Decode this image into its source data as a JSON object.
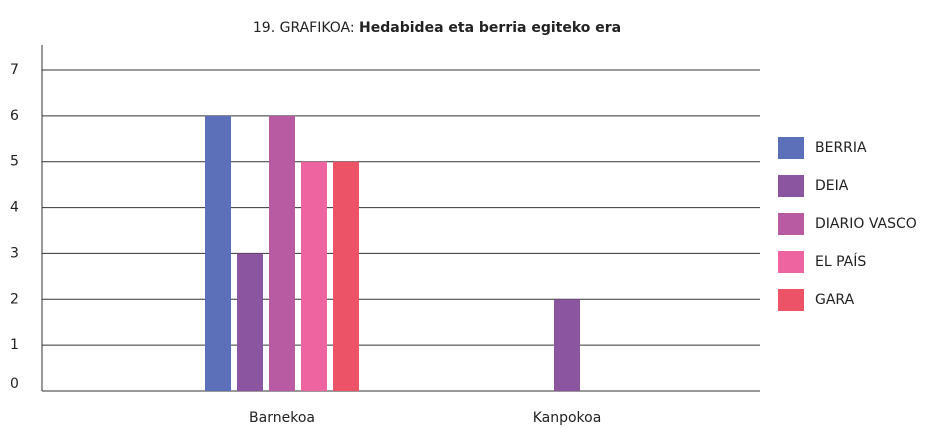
{
  "chart_data": {
    "type": "bar",
    "title": [
      "19. GRAFIKOA:",
      "Hedabidea eta berria egiteko era"
    ],
    "categories": [
      "Barnekoa",
      "Kanpokoa"
    ],
    "series": [
      {
        "name": "BERRIA",
        "color": "#5b70b8",
        "values": [
          6,
          null
        ]
      },
      {
        "name": "DEIA",
        "color": "#8b559f",
        "values": [
          3,
          2
        ]
      },
      {
        "name": "DIARIO VASCO",
        "color": "#b85ba3",
        "values": [
          6,
          null
        ]
      },
      {
        "name": "EL PAÍS",
        "color": "#ee64a0",
        "values": [
          5,
          null
        ]
      },
      {
        "name": "GARA",
        "color": "#ec5366",
        "values": [
          5,
          null
        ]
      }
    ],
    "ylim": [
      0,
      7
    ],
    "yticks": [
      0,
      1,
      2,
      3,
      4,
      5,
      6,
      7
    ],
    "grid": true,
    "legend": "right"
  }
}
